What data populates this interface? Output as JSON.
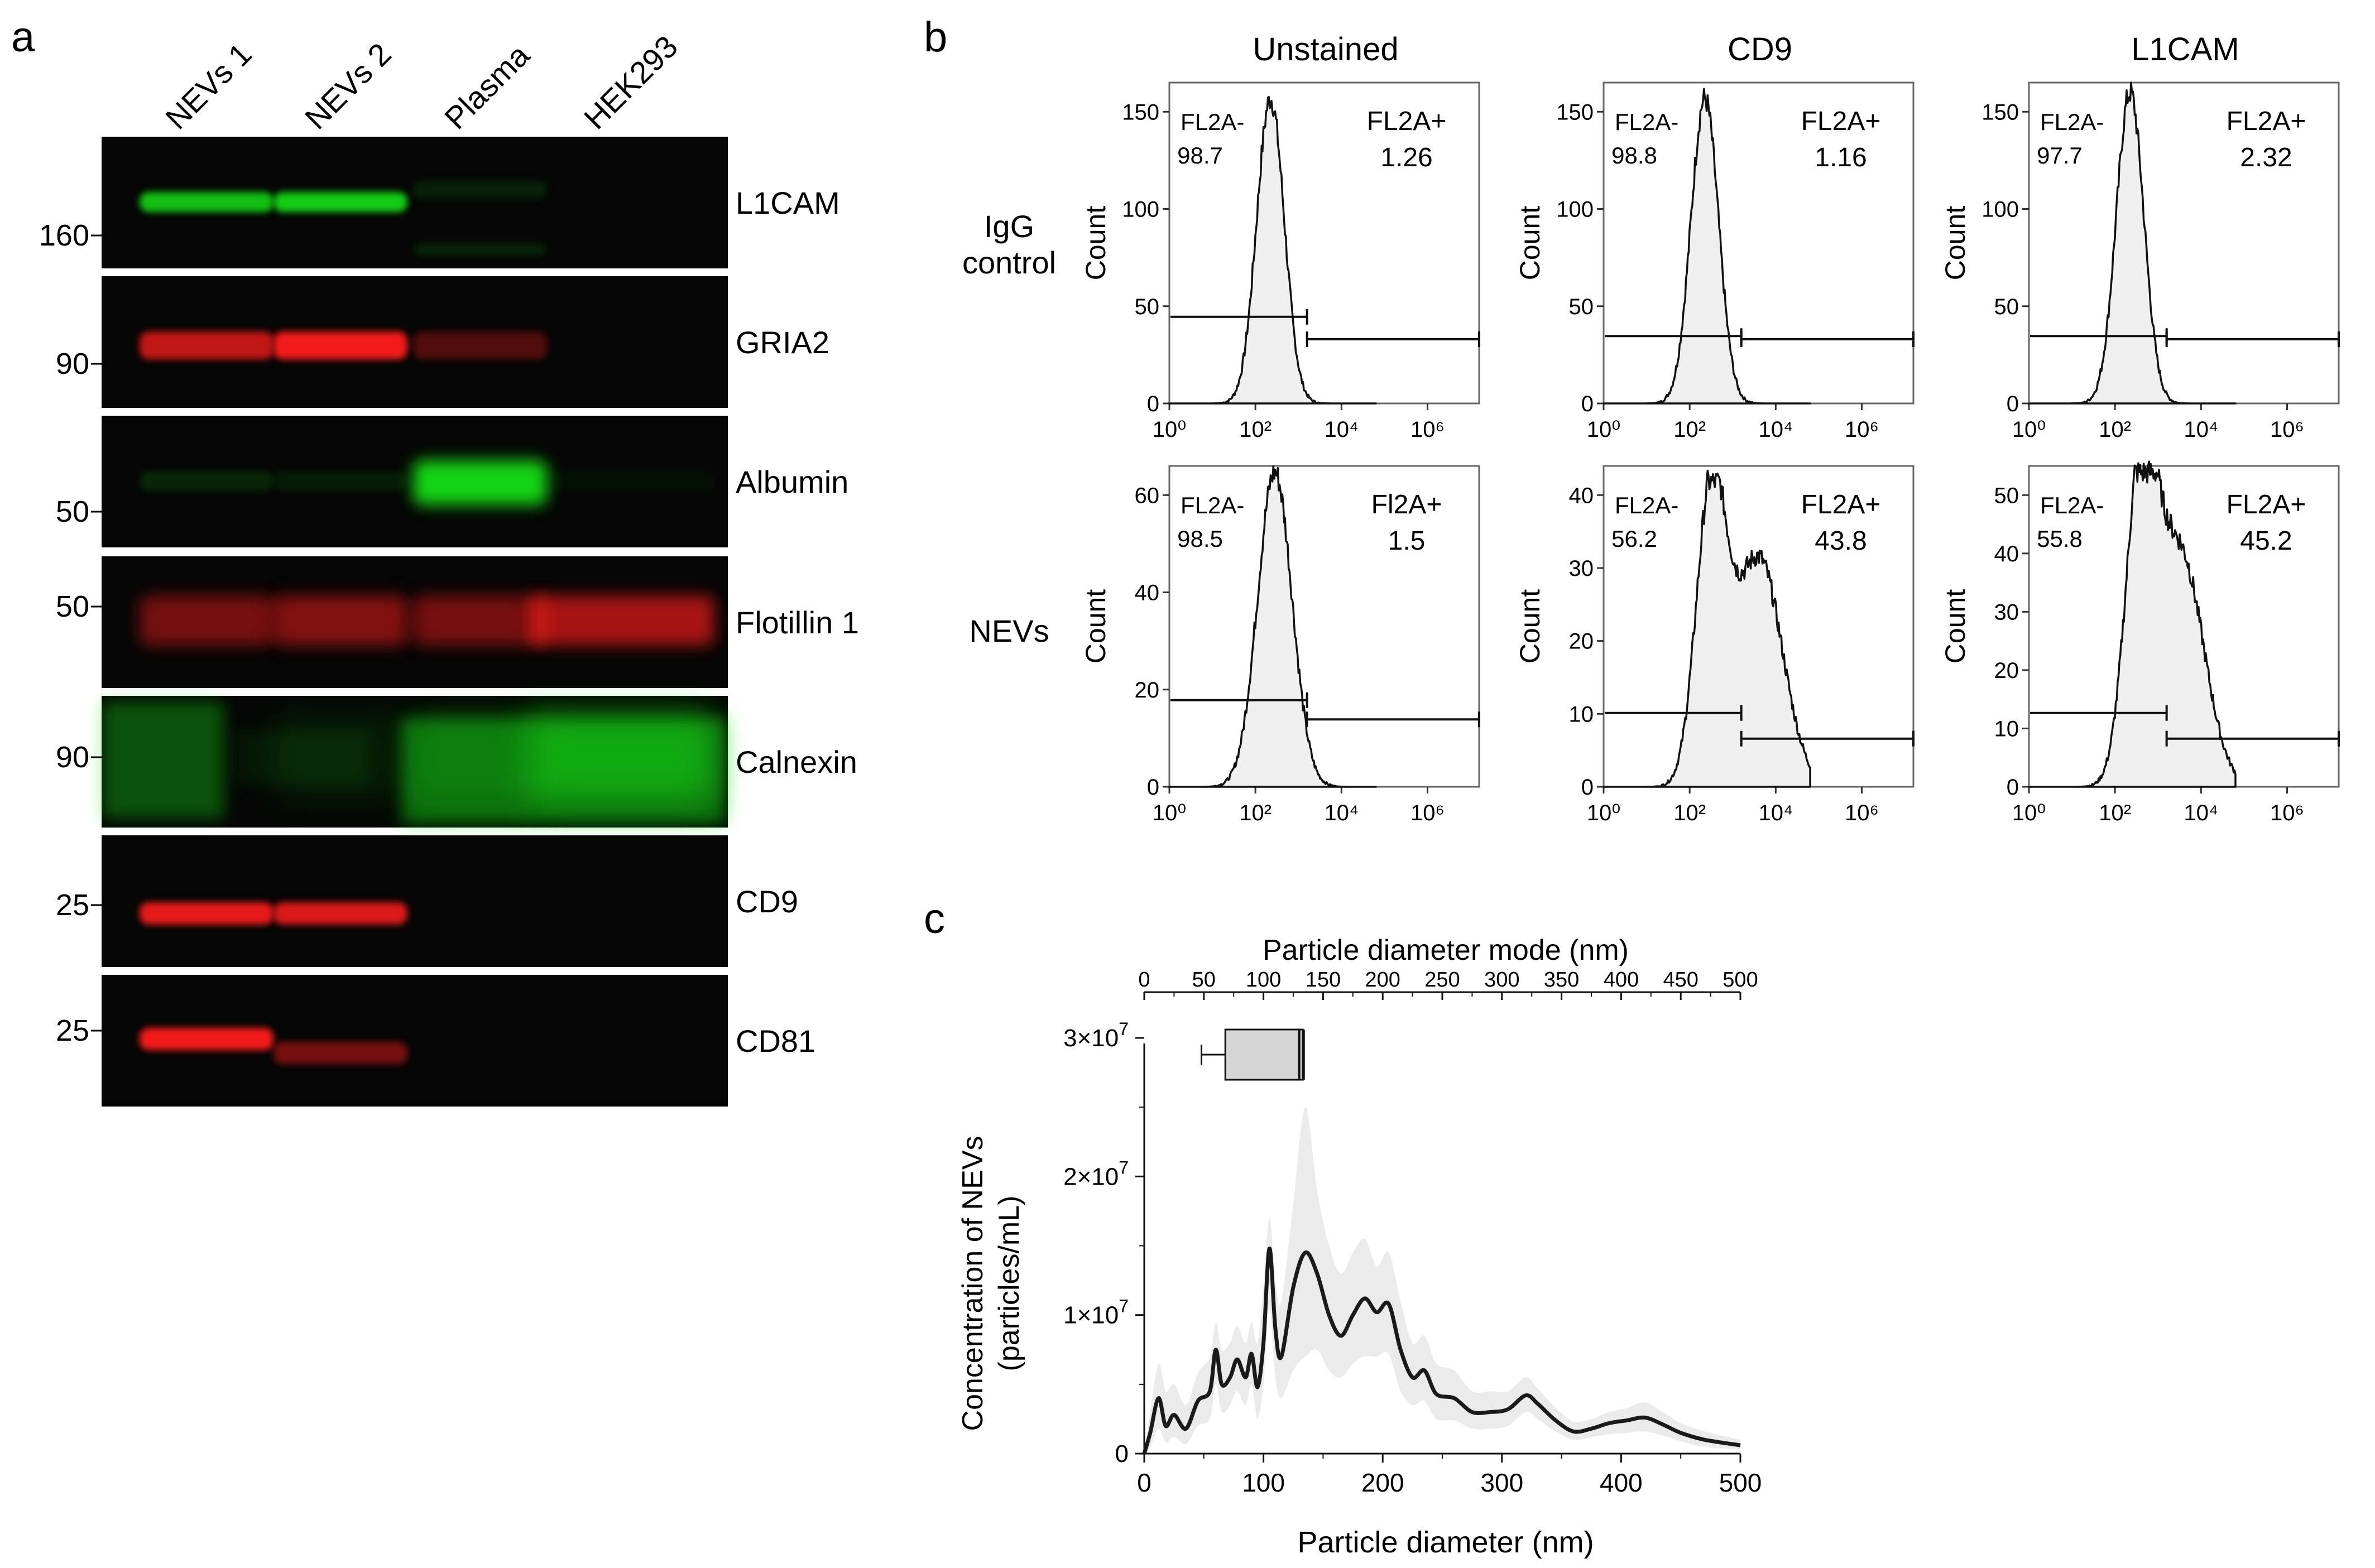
{
  "panel_a": {
    "label": "a",
    "lanes": [
      "NEVs 1",
      "NEVs 2",
      "Plasma",
      "HEK293"
    ],
    "blots": [
      {
        "protein": "L1CAM",
        "marker": "160",
        "channel": "green"
      },
      {
        "protein": "GRIA2",
        "marker": "90",
        "channel": "red"
      },
      {
        "protein": "Albumin",
        "marker": "50",
        "channel": "green"
      },
      {
        "protein": "Flotillin 1",
        "marker": "50",
        "channel": "red"
      },
      {
        "protein": "Calnexin",
        "marker": "90",
        "channel": "green"
      },
      {
        "protein": "CD9",
        "marker": "25",
        "channel": "red"
      },
      {
        "protein": "CD81",
        "marker": "25",
        "channel": "red"
      }
    ],
    "band_intensity": [
      [
        0.85,
        0.9,
        0.12,
        0.0
      ],
      [
        0.75,
        0.95,
        0.3,
        0.0
      ],
      [
        0.15,
        0.1,
        0.95,
        0.05
      ],
      [
        0.45,
        0.5,
        0.45,
        0.65
      ],
      [
        0.0,
        0.1,
        0.2,
        0.55
      ],
      [
        0.9,
        0.85,
        0.0,
        0.0
      ],
      [
        0.95,
        0.45,
        0.0,
        0.0
      ]
    ],
    "colors": {
      "green": "#18e018",
      "red": "#ff1a1a",
      "background": "#050505"
    }
  },
  "panel_b": {
    "label": "b",
    "columns": [
      "Unstained",
      "CD9",
      "L1CAM"
    ],
    "rows": [
      "IgG\ncontrol",
      "NEVs"
    ],
    "y_axis_label": "Count",
    "x_ticks": [
      "10⁰",
      "10²",
      "10⁴",
      "10⁶"
    ],
    "plots": [
      {
        "y_ticks": [
          "0",
          "50",
          "100",
          "150"
        ],
        "neg_label": "FL2A-",
        "neg_value": "98.7",
        "pos_label": "FL2A+",
        "pos_value": "1.26"
      },
      {
        "y_ticks": [
          "0",
          "50",
          "100",
          "150"
        ],
        "neg_label": "FL2A-",
        "neg_value": "98.8",
        "pos_label": "FL2A+",
        "pos_value": "1.16"
      },
      {
        "y_ticks": [
          "0",
          "50",
          "100",
          "150"
        ],
        "neg_label": "FL2A-",
        "neg_value": "97.7",
        "pos_label": "FL2A+",
        "pos_value": "2.32"
      },
      {
        "y_ticks": [
          "0",
          "20",
          "40",
          "60"
        ],
        "neg_label": "FL2A-",
        "neg_value": "98.5",
        "pos_label": "Fl2A+",
        "pos_value": "1.5"
      },
      {
        "y_ticks": [
          "0",
          "10",
          "20",
          "30",
          "40"
        ],
        "neg_label": "FL2A-",
        "neg_value": "56.2",
        "pos_label": "FL2A+",
        "pos_value": "43.8"
      },
      {
        "y_ticks": [
          "0",
          "10",
          "20",
          "30",
          "40",
          "50"
        ],
        "neg_label": "FL2A-",
        "neg_value": "55.8",
        "pos_label": "FL2A+",
        "pos_value": "45.2"
      }
    ]
  },
  "panel_c": {
    "label": "c",
    "top_axis_label": "Particle diameter mode (nm)",
    "x_label": "Particle diameter (nm)",
    "y_label_line1": "Concentration of NEVs",
    "y_label_line2": "(particles/mL)",
    "top_ticks": [
      "0",
      "50",
      "100",
      "150",
      "200",
      "250",
      "300",
      "350",
      "400",
      "450",
      "500"
    ],
    "x_ticks": [
      "0",
      "100",
      "200",
      "300",
      "400",
      "500"
    ],
    "y_ticks": [
      {
        "base": "0",
        "exp": ""
      },
      {
        "base": "1×10",
        "exp": "7"
      },
      {
        "base": "2×10",
        "exp": "7"
      },
      {
        "base": "3×10",
        "exp": "7"
      }
    ]
  },
  "chart_data": [
    {
      "type": "line",
      "title": "Unstained / IgG control",
      "xlabel": "",
      "ylabel": "Count",
      "xscale": "log",
      "xlim": [
        1,
        10000000
      ],
      "ylim": [
        0,
        165
      ],
      "gate_negative": "FL2A- 98.7",
      "gate_positive": "FL2A+ 1.26"
    },
    {
      "type": "box",
      "xlabel": "Particle diameter mode (nm)",
      "xlim": [
        0,
        500
      ],
      "whisker_low": 48,
      "q1": 68,
      "median": 130,
      "q3": 133,
      "whisker_high": 134
    },
    {
      "type": "area",
      "xlabel": "Particle diameter (nm)",
      "ylabel": "Concentration of NEVs (particles/mL)",
      "xlim": [
        0,
        500
      ],
      "ylim": [
        0,
        30000000
      ],
      "x": [
        0,
        5,
        12,
        18,
        25,
        35,
        45,
        55,
        60,
        65,
        72,
        78,
        85,
        90,
        95,
        100,
        105,
        110,
        115,
        125,
        135,
        145,
        155,
        165,
        175,
        185,
        195,
        205,
        215,
        225,
        235,
        245,
        260,
        275,
        290,
        305,
        320,
        330,
        345,
        360,
        375,
        390,
        405,
        420,
        435,
        450,
        470,
        500
      ],
      "mean": [
        0,
        1500000,
        4000000,
        2000000,
        2800000,
        1800000,
        3800000,
        4500000,
        7500000,
        5000000,
        5500000,
        6800000,
        5500000,
        7200000,
        4800000,
        8000000,
        14800000,
        9000000,
        7000000,
        12000000,
        14500000,
        13000000,
        10000000,
        8500000,
        10000000,
        11200000,
        10200000,
        10800000,
        7500000,
        5500000,
        6000000,
        4300000,
        4000000,
        3000000,
        3000000,
        3200000,
        4200000,
        3600000,
        2400000,
        1600000,
        1800000,
        2200000,
        2400000,
        2600000,
        2100000,
        1500000,
        1000000,
        600000
      ],
      "band_upper": [
        0,
        3000000,
        6500000,
        4500000,
        5000000,
        3500000,
        5800000,
        7000000,
        9500000,
        7500000,
        8000000,
        9200000,
        8000000,
        9500000,
        8000000,
        12000000,
        17000000,
        12500000,
        11000000,
        18000000,
        25000000,
        19000000,
        15000000,
        13000000,
        14500000,
        15500000,
        13500000,
        14500000,
        11000000,
        8000000,
        8500000,
        6500000,
        6000000,
        4500000,
        4500000,
        4500000,
        5500000,
        4700000,
        3300000,
        2300000,
        2500000,
        3000000,
        3300000,
        3700000,
        3000000,
        2200000,
        1600000,
        1000000
      ],
      "band_lower": [
        0,
        500000,
        1800000,
        800000,
        1200000,
        700000,
        2000000,
        2500000,
        5000000,
        3000000,
        3500000,
        4500000,
        3500000,
        5000000,
        2500000,
        5000000,
        10500000,
        5500000,
        4000000,
        6000000,
        7000000,
        7500000,
        6000000,
        5500000,
        6500000,
        7000000,
        7000000,
        7200000,
        4500000,
        3500000,
        3800000,
        2500000,
        2400000,
        1800000,
        1800000,
        2000000,
        3000000,
        2500000,
        1600000,
        1000000,
        1200000,
        1400000,
        1500000,
        1600000,
        1300000,
        900000,
        500000,
        300000
      ]
    }
  ]
}
